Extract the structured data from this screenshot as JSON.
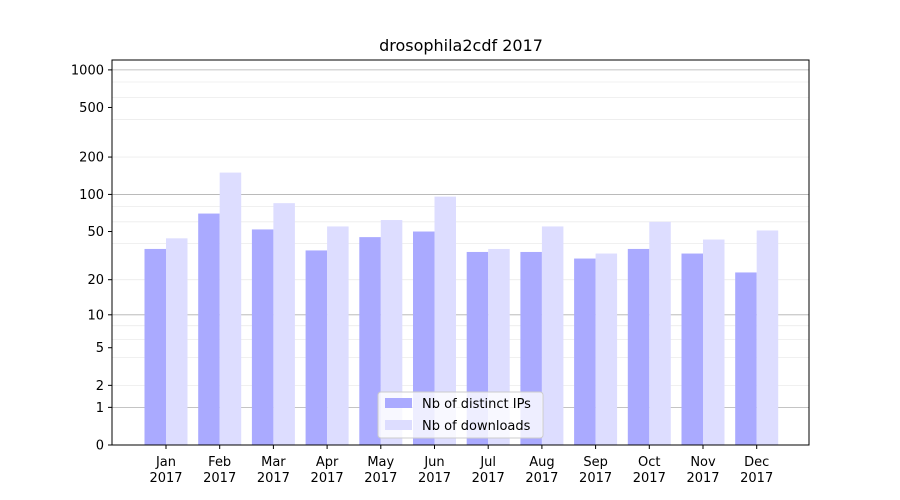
{
  "chart_data": {
    "type": "bar",
    "title": "drosophila2cdf 2017",
    "xlabel": "",
    "ylabel": "",
    "y_scale": "symlog",
    "ylim": [
      0,
      1200
    ],
    "grid": "horizontal",
    "legend_position": "bottom-center",
    "categories": [
      [
        "Jan",
        "2017"
      ],
      [
        "Feb",
        "2017"
      ],
      [
        "Mar",
        "2017"
      ],
      [
        "Apr",
        "2017"
      ],
      [
        "May",
        "2017"
      ],
      [
        "Jun",
        "2017"
      ],
      [
        "Jul",
        "2017"
      ],
      [
        "Aug",
        "2017"
      ],
      [
        "Sep",
        "2017"
      ],
      [
        "Oct",
        "2017"
      ],
      [
        "Nov",
        "2017"
      ],
      [
        "Dec",
        "2017"
      ]
    ],
    "y_ticks": [
      0,
      1,
      2,
      5,
      10,
      20,
      50,
      100,
      200,
      500,
      1000
    ],
    "series": [
      {
        "name": "Nb of distinct IPs",
        "color": "#aaaaff",
        "values": [
          36,
          70,
          52,
          35,
          45,
          50,
          34,
          34,
          30,
          36,
          33,
          23
        ]
      },
      {
        "name": "Nb of downloads",
        "color": "#ddddff",
        "values": [
          44,
          150,
          85,
          55,
          62,
          96,
          36,
          55,
          33,
          60,
          43,
          51
        ]
      }
    ]
  }
}
